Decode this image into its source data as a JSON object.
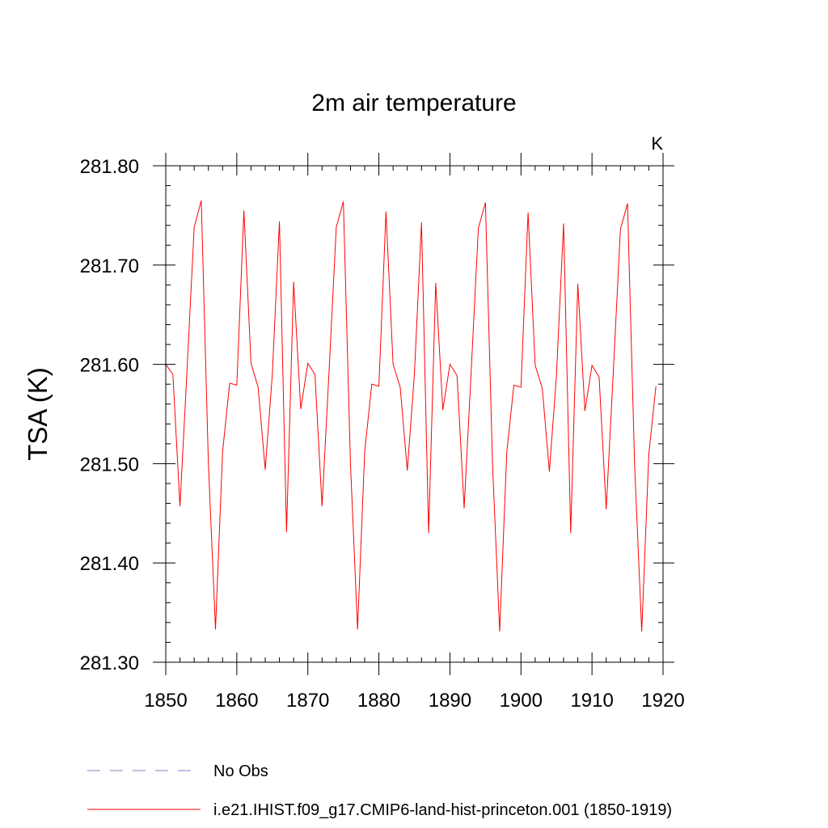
{
  "chart_data": {
    "type": "line",
    "title": "2m air temperature",
    "units_label": "K",
    "xlabel": "",
    "ylabel": "TSA  (K)",
    "xlim": [
      1850,
      1920
    ],
    "ylim": [
      281.3,
      281.8
    ],
    "x_ticks": [
      1850,
      1860,
      1870,
      1880,
      1890,
      1900,
      1910,
      1920
    ],
    "y_ticks": [
      "281.30",
      "281.40",
      "281.50",
      "281.60",
      "281.70",
      "281.80"
    ],
    "grid": false,
    "legend_position": "bottom",
    "legend": [
      {
        "label": "No Obs",
        "color": "#8080c0",
        "style": "dashed"
      },
      {
        "label": "i.e21.IHIST.f09_g17.CMIP6-land-hist-princeton.001 (1850-1919)",
        "color": "#ff0000",
        "style": "solid"
      }
    ],
    "series": [
      {
        "color": "#ff0000",
        "x": [
          1850,
          1851,
          1852,
          1853,
          1854,
          1855,
          1856,
          1857,
          1858,
          1859,
          1860,
          1861,
          1862,
          1863,
          1864,
          1865,
          1866,
          1867,
          1868,
          1869,
          1870,
          1871,
          1872,
          1873,
          1874,
          1875,
          1876,
          1877,
          1878,
          1879,
          1880,
          1881,
          1882,
          1883,
          1884,
          1885,
          1886,
          1887,
          1888,
          1889,
          1890,
          1891,
          1892,
          1893,
          1894,
          1895,
          1896,
          1897,
          1898,
          1899,
          1900,
          1901,
          1902,
          1903,
          1904,
          1905,
          1906,
          1907,
          1908,
          1909,
          1910,
          1911,
          1912,
          1913,
          1914,
          1915,
          1916,
          1917,
          1918,
          1919
        ],
        "values": [
          281.6,
          281.59,
          281.457,
          281.595,
          281.738,
          281.765,
          281.5,
          281.333,
          281.512,
          281.581,
          281.579,
          281.755,
          281.601,
          281.577,
          281.494,
          281.59,
          281.744,
          281.431,
          281.683,
          281.555,
          281.601,
          281.59,
          281.457,
          281.595,
          281.738,
          281.764,
          281.5,
          281.333,
          281.512,
          281.58,
          281.578,
          281.754,
          281.6,
          281.577,
          281.493,
          281.59,
          281.743,
          281.43,
          281.682,
          281.554,
          281.6,
          281.589,
          281.455,
          281.594,
          281.737,
          281.763,
          281.499,
          281.331,
          281.511,
          281.579,
          281.577,
          281.753,
          281.599,
          281.576,
          281.492,
          281.589,
          281.742,
          281.43,
          281.681,
          281.553,
          281.599,
          281.587,
          281.454,
          281.593,
          281.736,
          281.762,
          281.498,
          281.331,
          281.51,
          281.578
        ]
      }
    ]
  }
}
